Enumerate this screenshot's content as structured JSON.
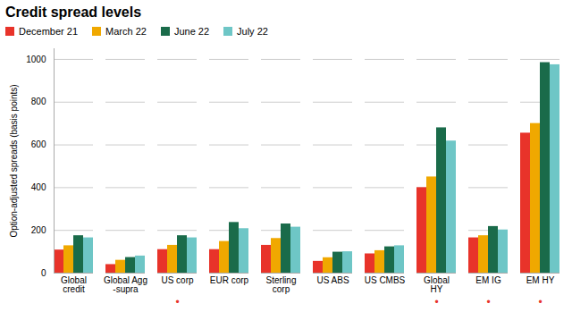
{
  "chart_data": {
    "type": "bar",
    "title": "Credit spread levels",
    "ylabel": "Option-adjusted spreads (basis points)",
    "categories": [
      "Global\ncredit",
      "Global Agg\n-supra",
      "US corp",
      "EUR corp",
      "Sterling\ncorp",
      "US ABS",
      "US CMBS",
      "Global\nHY",
      "EM IG",
      "EM HY"
    ],
    "series": [
      {
        "name": "December 21",
        "color": "#e8332a",
        "values": [
          108,
          40,
          110,
          110,
          130,
          55,
          90,
          400,
          165,
          655
        ]
      },
      {
        "name": "March 22",
        "color": "#f0a800",
        "values": [
          128,
          60,
          130,
          148,
          162,
          72,
          105,
          450,
          175,
          700
        ]
      },
      {
        "name": "June 22",
        "color": "#1a6b4a",
        "values": [
          175,
          73,
          175,
          237,
          230,
          98,
          123,
          680,
          218,
          985
        ]
      },
      {
        "name": "July 22",
        "color": "#6ec6c6",
        "values": [
          165,
          80,
          165,
          208,
          215,
          100,
          128,
          618,
          202,
          975
        ]
      }
    ],
    "ylim": [
      0,
      1050
    ],
    "yticks": [
      0,
      200,
      400,
      600,
      800,
      1000
    ],
    "grid": true,
    "legend": "upper left",
    "annotations": [
      {
        "text": "•",
        "category": "US corp",
        "color": "#e8332a"
      },
      {
        "text": "•",
        "category": "Global\nHY",
        "color": "#e8332a"
      },
      {
        "text": "•",
        "category": "EM IG",
        "color": "#e8332a"
      },
      {
        "text": "•",
        "category": "EM HY",
        "color": "#e8332a"
      }
    ]
  }
}
